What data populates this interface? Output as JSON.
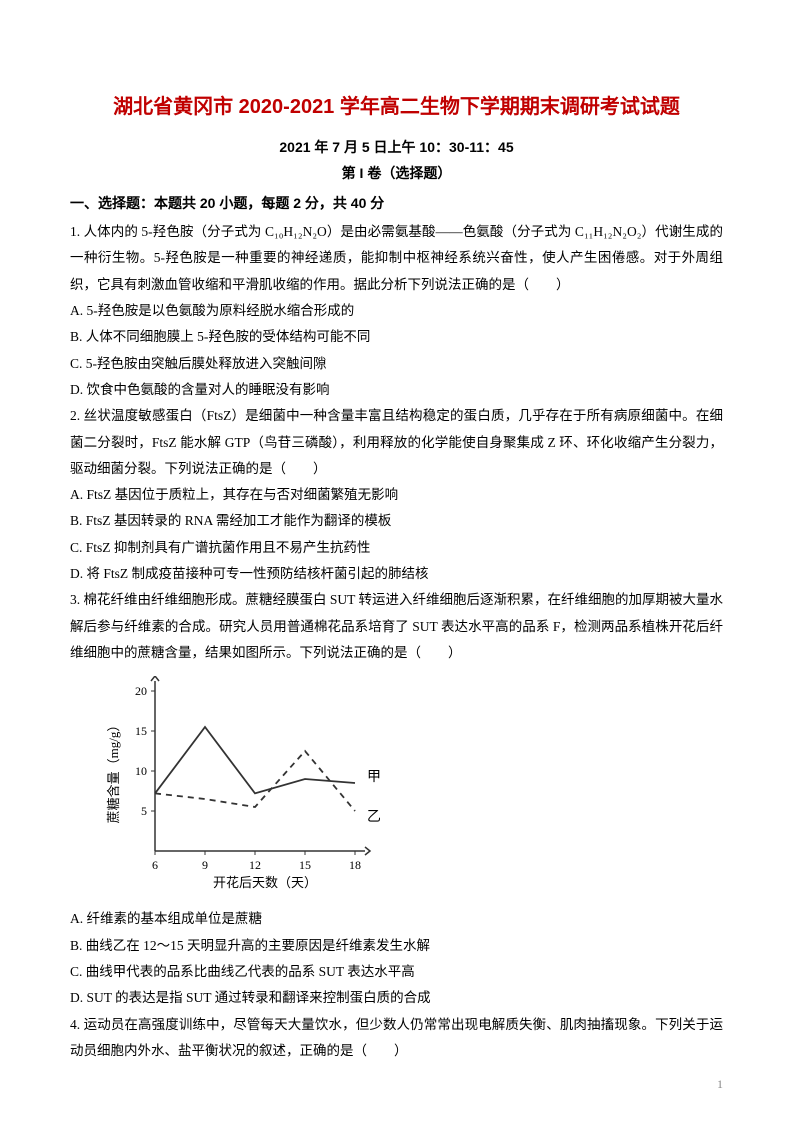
{
  "title": "湖北省黄冈市 2020-2021 学年高二生物下学期期末调研考试试题",
  "date_time": "2021 年 7 月 5 日上午 10：30-11：45",
  "paper_part": "第 I 卷（选择题）",
  "section1_header": "一、选择题：本题共 20 小题，每题 2 分，共 40 分",
  "q1": {
    "stem": "1. 人体内的 5-羟色胺（分子式为 C₁₀H₁₂N₂O）是由必需氨基酸——色氨酸（分子式为 C₁₁H₁₂N₂O₂）代谢生成的一种衍生物。5-羟色胺是一种重要的神经递质，能抑制中枢神经系统兴奋性，使人产生困倦感。对于外周组织，它具有刺激血管收缩和平滑肌收缩的作用。据此分析下列说法正确的是（　　）",
    "A": "A. 5-羟色胺是以色氨酸为原料经脱水缩合形成的",
    "B": "B. 人体不同细胞膜上 5-羟色胺的受体结构可能不同",
    "C": "C. 5-羟色胺由突触后膜处释放进入突触间隙",
    "D": "D. 饮食中色氨酸的含量对人的睡眠没有影响"
  },
  "q2": {
    "stem": "2. 丝状温度敏感蛋白（FtsZ）是细菌中一种含量丰富且结构稳定的蛋白质，几乎存在于所有病原细菌中。在细菌二分裂时，FtsZ 能水解 GTP（鸟苷三磷酸），利用释放的化学能使自身聚集成 Z 环、环化收缩产生分裂力，驱动细菌分裂。下列说法正确的是（　　）",
    "A": "A. FtsZ 基因位于质粒上，其存在与否对细菌繁殖无影响",
    "B": "B. FtsZ 基因转录的 RNA 需经加工才能作为翻译的模板",
    "C": "C. FtsZ 抑制剂具有广谱抗菌作用且不易产生抗药性",
    "D": "D. 将 FtsZ 制成疫苗接种可专一性预防结核杆菌引起的肺结核"
  },
  "q3": {
    "stem": "3. 棉花纤维由纤维细胞形成。蔗糖经膜蛋白 SUT 转运进入纤维细胞后逐渐积累，在纤维细胞的加厚期被大量水解后参与纤维素的合成。研究人员用普通棉花品系培育了 SUT 表达水平高的品系 F，检测两品系植株开花后纤维细胞中的蔗糖含量，结果如图所示。下列说法正确的是（　　）",
    "A": "A. 纤维素的基本组成单位是蔗糖",
    "B": "B. 曲线乙在 12～15 天明显升高的主要原因是纤维素发生水解",
    "C": "C. 曲线甲代表的品系比曲线乙代表的品系 SUT 表达水平高",
    "D": "D. SUT 的表达是指 SUT 通过转录和翻译来控制蛋白质的合成"
  },
  "q4": {
    "stem": "4. 运动员在高强度训练中，尽管每天大量饮水，但少数人仍常常出现电解质失衡、肌肉抽搐现象。下列关于运动员细胞内外水、盐平衡状况的叙述，正确的是（　　）"
  },
  "chart": {
    "type": "line",
    "x_label": "开花后天数（天）",
    "y_label": "蔗糖含量（mg/g）",
    "x_ticks": [
      6,
      9,
      12,
      15,
      18
    ],
    "y_ticks": [
      5,
      10,
      15,
      20
    ],
    "series_jia": {
      "label": "甲",
      "style": "solid",
      "points": [
        [
          6,
          7.2
        ],
        [
          9,
          15.5
        ],
        [
          12,
          7.2
        ],
        [
          15,
          9.0
        ],
        [
          18,
          8.5
        ]
      ]
    },
    "series_yi": {
      "label": "乙",
      "style": "dashed",
      "points": [
        [
          6,
          7.2
        ],
        [
          9,
          6.5
        ],
        [
          12,
          5.5
        ],
        [
          15,
          12.5
        ],
        [
          18,
          5.0
        ]
      ]
    },
    "axis_color": "#333333",
    "line_color": "#333333"
  },
  "page_number": "1"
}
